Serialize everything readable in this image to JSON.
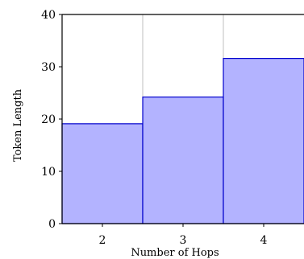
{
  "chart_data": {
    "type": "bar",
    "title": "",
    "xlabel": "Number of Hops",
    "ylabel": "Token Length",
    "categories": [
      "2",
      "3",
      "4"
    ],
    "values": [
      19.1,
      24.2,
      31.6
    ],
    "ylim": [
      0,
      40
    ],
    "yticks": [
      0,
      10,
      20,
      30,
      40
    ],
    "grid": "vertical",
    "legend": "none",
    "colors": {
      "bar_fill": "#b3b3ff",
      "bar_stroke": "#0000cc",
      "grid": "#b0b0b0",
      "axis": "#000000"
    }
  }
}
